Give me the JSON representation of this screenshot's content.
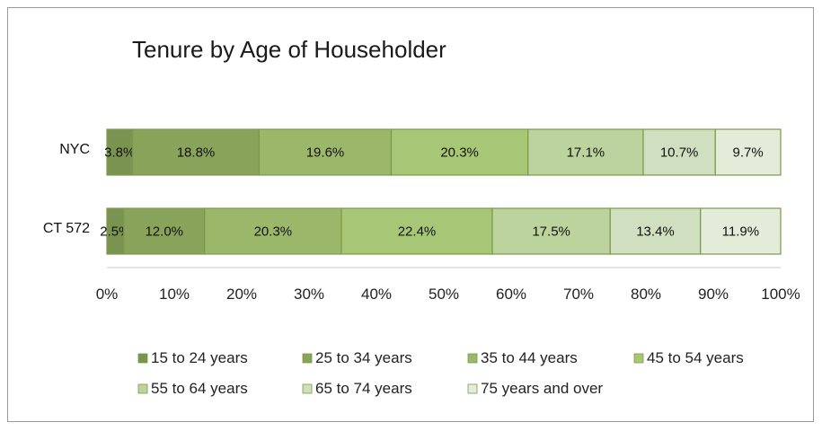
{
  "chart_data": {
    "type": "bar",
    "orientation": "horizontal",
    "stacked": "percent",
    "title": "Tenure by Age of Householder",
    "categories": [
      "NYC",
      "CT 572"
    ],
    "series": [
      {
        "name": "15 to 24 years",
        "values": [
          3.8,
          2.5
        ],
        "labels": [
          "3.8%",
          "2.5%"
        ],
        "color": "#7b9351"
      },
      {
        "name": "25 to 34 years",
        "values": [
          18.8,
          12.0
        ],
        "labels": [
          "18.8%",
          "12.0%"
        ],
        "color": "#89a35b"
      },
      {
        "name": "35 to 44 years",
        "values": [
          19.6,
          20.3
        ],
        "labels": [
          "19.6%",
          "20.3%"
        ],
        "color": "#9bb86a"
      },
      {
        "name": "45 to 54 years",
        "values": [
          20.3,
          22.4
        ],
        "labels": [
          "20.3%",
          "22.4%"
        ],
        "color": "#a8c776"
      },
      {
        "name": "55 to 64 years",
        "values": [
          17.1,
          17.5
        ],
        "labels": [
          "17.1%",
          "17.5%"
        ],
        "color": "#bcd39d"
      },
      {
        "name": "65 to 74 years",
        "values": [
          10.7,
          13.4
        ],
        "labels": [
          "10.7%",
          "13.4%"
        ],
        "color": "#d0dfbf"
      },
      {
        "name": "75 years and over",
        "values": [
          9.7,
          11.9
        ],
        "labels": [
          "9.7%",
          "11.9%"
        ],
        "color": "#e3ecd9"
      }
    ],
    "xticks": [
      "0%",
      "10%",
      "20%",
      "30%",
      "40%",
      "50%",
      "60%",
      "70%",
      "80%",
      "90%",
      "100%"
    ],
    "xlim": [
      0,
      100
    ],
    "border_color": "#7a9a49",
    "grid": false,
    "legend_position": "bottom"
  }
}
